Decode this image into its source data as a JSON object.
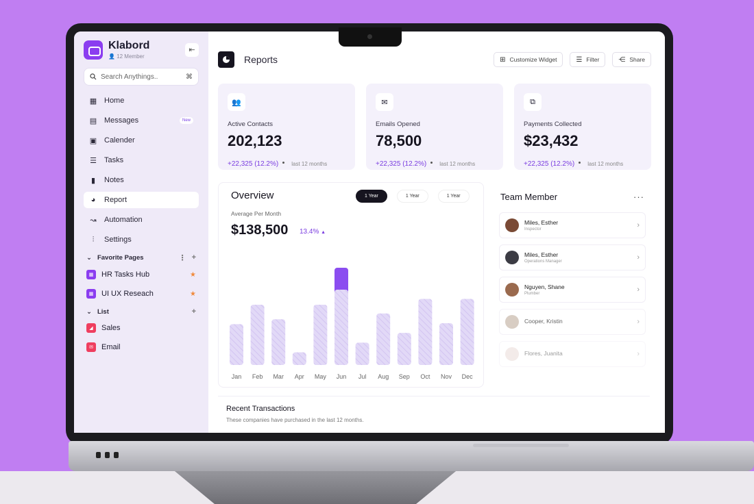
{
  "sidebar": {
    "brand": {
      "name": "Klabord",
      "subtitle": "12 Member"
    },
    "search": {
      "placeholder": "Search Anythings..",
      "shortcut": "⌘"
    },
    "nav": [
      {
        "label": "Home",
        "icon": "grid-icon"
      },
      {
        "label": "Messages",
        "icon": "chat-icon",
        "badge": "New"
      },
      {
        "label": "Calender",
        "icon": "calendar-icon"
      },
      {
        "label": "Tasks",
        "icon": "checklist-icon"
      },
      {
        "label": "Notes",
        "icon": "clipboard-icon"
      },
      {
        "label": "Report",
        "icon": "pie-chart-icon",
        "active": true
      },
      {
        "label": "Automation",
        "icon": "automation-icon"
      },
      {
        "label": "Settings",
        "icon": "sliders-icon"
      }
    ],
    "favorites": {
      "title": "Favorite Pages",
      "items": [
        {
          "label": "HR Tasks Hub"
        },
        {
          "label": "UI UX Reseach"
        }
      ]
    },
    "list": {
      "title": "List",
      "items": [
        {
          "label": "Sales"
        },
        {
          "label": "Email"
        }
      ]
    }
  },
  "header": {
    "title": "Reports",
    "actions": [
      {
        "label": "Customize Widget",
        "icon": "widget-icon"
      },
      {
        "label": "Filter",
        "icon": "filter-icon"
      },
      {
        "label": "Share",
        "icon": "share-icon"
      }
    ]
  },
  "stats": [
    {
      "label": "Active Contacts",
      "value": "202,123",
      "change": "+22,325 (12.2%)",
      "period": "last 12 months",
      "icon": "users-icon"
    },
    {
      "label": "Emails Opened",
      "value": "78,500",
      "change": "+22,325 (12.2%)",
      "period": "last 12 months",
      "icon": "mail-open-icon"
    },
    {
      "label": "Payments Collected",
      "value": "$23,432",
      "change": "+22,325 (12.2%)",
      "period": "last 12 months",
      "icon": "payment-icon"
    }
  ],
  "overview": {
    "title": "Overview",
    "tabs": [
      {
        "label": "1 Year",
        "active": true
      },
      {
        "label": "1 Year"
      },
      {
        "label": "1 Year"
      }
    ],
    "subtitle": "Average Per Month",
    "value": "$138,500",
    "change": "13.4%"
  },
  "chart_data": {
    "type": "bar",
    "categories": [
      "Jan",
      "Feb",
      "Mar",
      "Apr",
      "May",
      "Jun",
      "Jul",
      "Aug",
      "Sep",
      "Oct",
      "Nov",
      "Dec"
    ],
    "values": [
      42,
      62,
      47,
      13,
      62,
      100,
      23,
      53,
      33,
      68,
      43,
      68
    ],
    "highlight": "Jun",
    "highlight_color": "#8b4df0",
    "bar_color": "#ddd3f5",
    "ylim": [
      0,
      100
    ]
  },
  "team": {
    "title": "Team Member",
    "members": [
      {
        "name": "Miles, Esther",
        "role": "Inspector",
        "avatar_color": "#7a4a35"
      },
      {
        "name": "Miles, Esther",
        "role": "Operations Manager",
        "avatar_color": "#3c3c44"
      },
      {
        "name": "Nguyen, Shane",
        "role": "Plumber",
        "avatar_color": "#9a6a4e"
      },
      {
        "name": "Cooper, Kristin",
        "role": "",
        "avatar_color": "#c8b8aa"
      },
      {
        "name": "Flores, Juanita",
        "role": "",
        "avatar_color": "#e6d4d0"
      }
    ]
  },
  "transactions": {
    "title": "Recent Transactions",
    "subtitle": "These companies have purchased in the last 12 months."
  }
}
